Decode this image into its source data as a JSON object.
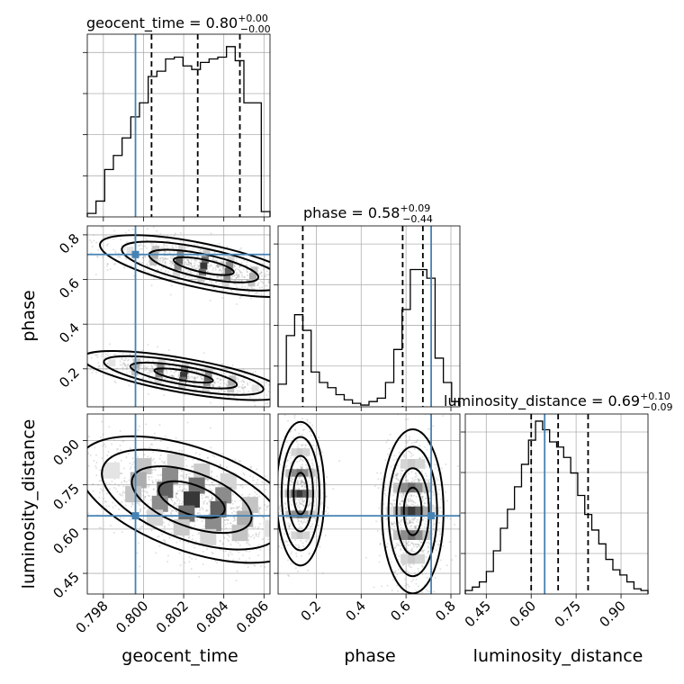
{
  "chart_data": {
    "type": "corner",
    "parameters": [
      "geocent_time",
      "phase",
      "luminosity_distance"
    ],
    "titles": [
      {
        "label": "geocent_time = 0.80",
        "plus": "+0.00",
        "minus": "−0.00"
      },
      {
        "label": "phase = 0.58",
        "plus": "+0.09",
        "minus": "−0.44"
      },
      {
        "label": "luminosity_distance = 0.69",
        "plus": "+0.10",
        "minus": "−0.09"
      }
    ],
    "axis_labels": {
      "x": [
        "geocent_time",
        "phase",
        "luminosity_distance"
      ],
      "y": [
        "phase",
        "luminosity_distance"
      ]
    },
    "ranges": {
      "geocent_time": [
        0.7972,
        0.8063
      ],
      "phase": [
        0.03,
        0.84
      ],
      "luminosity_distance": [
        0.38,
        0.99
      ]
    },
    "ticks": {
      "geocent_time": [
        "0.798",
        "0.800",
        "0.802",
        "0.804",
        "0.806"
      ],
      "phase_x": [
        "0.2",
        "0.4",
        "0.6",
        "0.8"
      ],
      "phase_y": [
        "0.2",
        "0.4",
        "0.6",
        "0.8"
      ],
      "luminosity_distance_x": [
        "0.45",
        "0.60",
        "0.75",
        "0.90"
      ],
      "luminosity_distance_y": [
        "0.45",
        "0.60",
        "0.75",
        "0.90"
      ]
    },
    "truths": {
      "geocent_time": 0.7996,
      "phase": 0.712,
      "luminosity_distance": 0.645
    },
    "quantiles": {
      "geocent_time": [
        0.8004,
        0.8027,
        0.8048
      ],
      "phase": [
        0.14,
        0.585,
        0.675
      ],
      "luminosity_distance": [
        0.6,
        0.69,
        0.79
      ]
    },
    "histograms": {
      "geocent_time": [
        0.02,
        0.09,
        0.27,
        0.35,
        0.45,
        0.57,
        0.65,
        0.8,
        0.83,
        0.9,
        0.91,
        0.86,
        0.84,
        0.88,
        0.9,
        0.91,
        0.97,
        0.89,
        0.65,
        0.65,
        0.03
      ],
      "phase": [
        0.13,
        0.41,
        0.53,
        0.44,
        0.2,
        0.14,
        0.11,
        0.07,
        0.04,
        0.02,
        0.01,
        0.03,
        0.05,
        0.14,
        0.33,
        0.56,
        0.79,
        0.79,
        0.74,
        0.28,
        0.14,
        0.03
      ],
      "luminosity_distance": [
        0.02,
        0.04,
        0.07,
        0.13,
        0.25,
        0.38,
        0.49,
        0.62,
        0.75,
        0.89,
        1.0,
        0.95,
        0.88,
        0.85,
        0.79,
        0.7,
        0.57,
        0.46,
        0.37,
        0.29,
        0.2,
        0.14,
        0.11,
        0.07,
        0.03,
        0.02
      ]
    },
    "hist_ylim": 1.0,
    "grid": true
  }
}
